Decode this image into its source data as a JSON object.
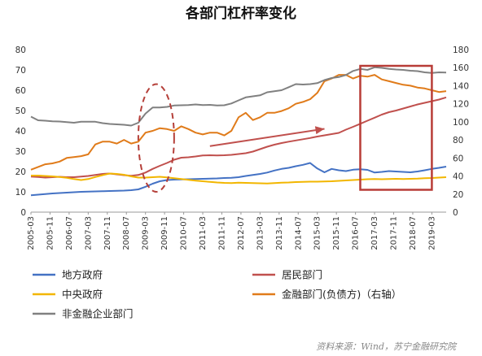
{
  "chart_data": {
    "type": "line",
    "title": "各部门杠杆率变化",
    "source": "资料来源：Wind，苏宁金融研究院",
    "x_tick_labels": [
      "2005-03",
      "2005-11",
      "2006-07",
      "2007-03",
      "2007-11",
      "2008-07",
      "2009-03",
      "2009-11",
      "2010-07",
      "2011-03",
      "2011-11",
      "2012-07",
      "2013-03",
      "2013-11",
      "2014-07",
      "2015-03",
      "2015-11",
      "2016-07",
      "2017-03",
      "2017-11",
      "2018-07",
      "2019-03"
    ],
    "x": [
      "2005-03",
      "2005-06",
      "2005-09",
      "2005-12",
      "2006-03",
      "2006-06",
      "2006-09",
      "2006-12",
      "2007-03",
      "2007-06",
      "2007-09",
      "2007-12",
      "2008-03",
      "2008-06",
      "2008-09",
      "2008-12",
      "2009-03",
      "2009-06",
      "2009-09",
      "2009-12",
      "2010-03",
      "2010-06",
      "2010-09",
      "2010-12",
      "2011-03",
      "2011-06",
      "2011-09",
      "2011-12",
      "2012-03",
      "2012-06",
      "2012-09",
      "2012-12",
      "2013-03",
      "2013-06",
      "2013-09",
      "2013-12",
      "2014-03",
      "2014-06",
      "2014-09",
      "2014-12",
      "2015-03",
      "2015-06",
      "2015-09",
      "2015-12",
      "2016-03",
      "2016-06",
      "2016-09",
      "2016-12",
      "2017-03",
      "2017-06",
      "2017-09",
      "2017-12",
      "2018-03",
      "2018-06",
      "2018-09",
      "2018-12",
      "2019-03",
      "2019-06",
      "2019-09"
    ],
    "y_left": {
      "min": 0,
      "max": 80,
      "ticks": [
        0,
        10,
        20,
        30,
        40,
        50,
        60,
        70,
        80
      ]
    },
    "y_right": {
      "min": 0,
      "max": 180,
      "ticks": [
        0,
        20,
        40,
        60,
        80,
        100,
        120,
        140,
        160,
        180
      ]
    },
    "grid": false,
    "legend_position": "bottom",
    "series": [
      {
        "name": "地方政府",
        "axis": "left",
        "color": "#4472C4",
        "values": [
          8.3,
          8.6,
          8.9,
          9.2,
          9.4,
          9.6,
          9.8,
          10.0,
          10.1,
          10.2,
          10.3,
          10.4,
          10.5,
          10.6,
          10.8,
          11.2,
          12.5,
          14.0,
          15.2,
          15.8,
          16.0,
          16.1,
          16.2,
          16.3,
          16.4,
          16.5,
          16.6,
          16.8,
          16.9,
          17.2,
          17.8,
          18.3,
          18.8,
          19.5,
          20.5,
          21.3,
          21.8,
          22.6,
          23.3,
          24.2,
          21.5,
          19.6,
          21.3,
          20.6,
          20.2,
          20.9,
          21.1,
          20.8,
          19.5,
          19.8,
          20.2,
          20.0,
          19.8,
          19.6,
          20.0,
          20.6,
          21.3,
          21.8,
          22.4
        ]
      },
      {
        "name": "居民部门",
        "axis": "left",
        "color": "#C0504D",
        "values": [
          17.5,
          17.3,
          17.0,
          17.2,
          17.4,
          17.2,
          17.2,
          17.5,
          17.8,
          18.3,
          18.8,
          19.0,
          18.6,
          18.2,
          17.9,
          18.3,
          19.5,
          21.3,
          22.8,
          24.2,
          25.8,
          26.8,
          27.0,
          27.4,
          27.9,
          28.0,
          27.9,
          28.0,
          28.2,
          28.6,
          29.0,
          29.8,
          31.0,
          32.2,
          33.2,
          34.0,
          34.7,
          35.3,
          35.9,
          36.5,
          37.2,
          37.8,
          38.4,
          39.0,
          40.6,
          42.0,
          43.5,
          45.0,
          46.5,
          48.0,
          49.2,
          50.0,
          51.0,
          52.0,
          53.0,
          53.8,
          54.6,
          55.4,
          56.5
        ]
      },
      {
        "name": "中央政府",
        "axis": "left",
        "color": "#F2B600",
        "values": [
          18.0,
          18.0,
          17.8,
          17.6,
          17.3,
          16.9,
          16.3,
          15.8,
          16.3,
          17.3,
          18.2,
          19.0,
          18.8,
          18.4,
          17.6,
          17.0,
          17.0,
          17.2,
          17.4,
          17.1,
          16.7,
          16.3,
          15.9,
          15.5,
          15.2,
          14.9,
          14.6,
          14.4,
          14.3,
          14.5,
          14.4,
          14.3,
          14.2,
          14.1,
          14.3,
          14.5,
          14.6,
          14.8,
          14.9,
          15.0,
          15.0,
          15.1,
          15.2,
          15.4,
          15.6,
          15.8,
          16.0,
          16.2,
          16.3,
          16.2,
          16.3,
          16.4,
          16.3,
          16.4,
          16.5,
          16.7,
          16.8,
          17.0,
          17.2
        ]
      },
      {
        "name": "金融部门(负债方)（右轴）",
        "axis": "right",
        "color": "#E07B1A",
        "values": [
          47,
          50,
          53,
          54,
          56,
          60,
          61,
          62,
          64,
          75,
          78,
          78,
          76,
          80,
          76,
          78,
          88,
          90,
          93,
          92,
          90,
          95,
          92,
          88,
          86,
          88,
          88,
          85,
          90,
          105,
          110,
          102,
          105,
          110,
          110,
          112,
          115,
          120,
          122,
          125,
          132,
          145,
          148,
          152,
          152,
          148,
          151,
          150,
          152,
          147,
          145,
          143,
          141,
          140,
          138,
          137,
          135,
          133,
          134
        ]
      },
      {
        "name": "非金融企业部门",
        "axis": "left",
        "color": "#808080",
        "values": [
          47.0,
          45.2,
          45.0,
          44.7,
          44.6,
          44.3,
          44.0,
          44.5,
          44.5,
          44.5,
          43.8,
          43.4,
          43.2,
          43.0,
          42.6,
          44.0,
          48.5,
          51.5,
          51.5,
          51.8,
          52.5,
          52.6,
          52.7,
          53.0,
          52.7,
          52.8,
          52.5,
          52.6,
          53.5,
          55.0,
          56.5,
          57.0,
          57.5,
          59.0,
          59.5,
          60.0,
          61.5,
          63.0,
          62.8,
          63.0,
          63.5,
          65.0,
          66.0,
          66.5,
          67.5,
          69.5,
          70.5,
          70.0,
          71.3,
          71.0,
          70.5,
          70.2,
          70.0,
          69.6,
          69.4,
          68.8,
          68.5,
          68.8,
          68.7
        ]
      }
    ],
    "annotations": [
      {
        "type": "dashed-ellipse",
        "x_from": "2008-12",
        "x_to": "2010-03",
        "y_left_from": 10,
        "y_left_to": 63,
        "color": "#B5403A"
      },
      {
        "type": "arrow",
        "from": {
          "x": "2011-06",
          "y_left": 32.5
        },
        "to": {
          "x": "2015-06",
          "y_left": 41.0
        },
        "color": "#C0504D"
      },
      {
        "type": "rectangle",
        "x_from": "2016-09",
        "x_to": "2019-03",
        "y_left_from": 11,
        "y_left_to": 72,
        "color": "#B83C37"
      }
    ]
  }
}
